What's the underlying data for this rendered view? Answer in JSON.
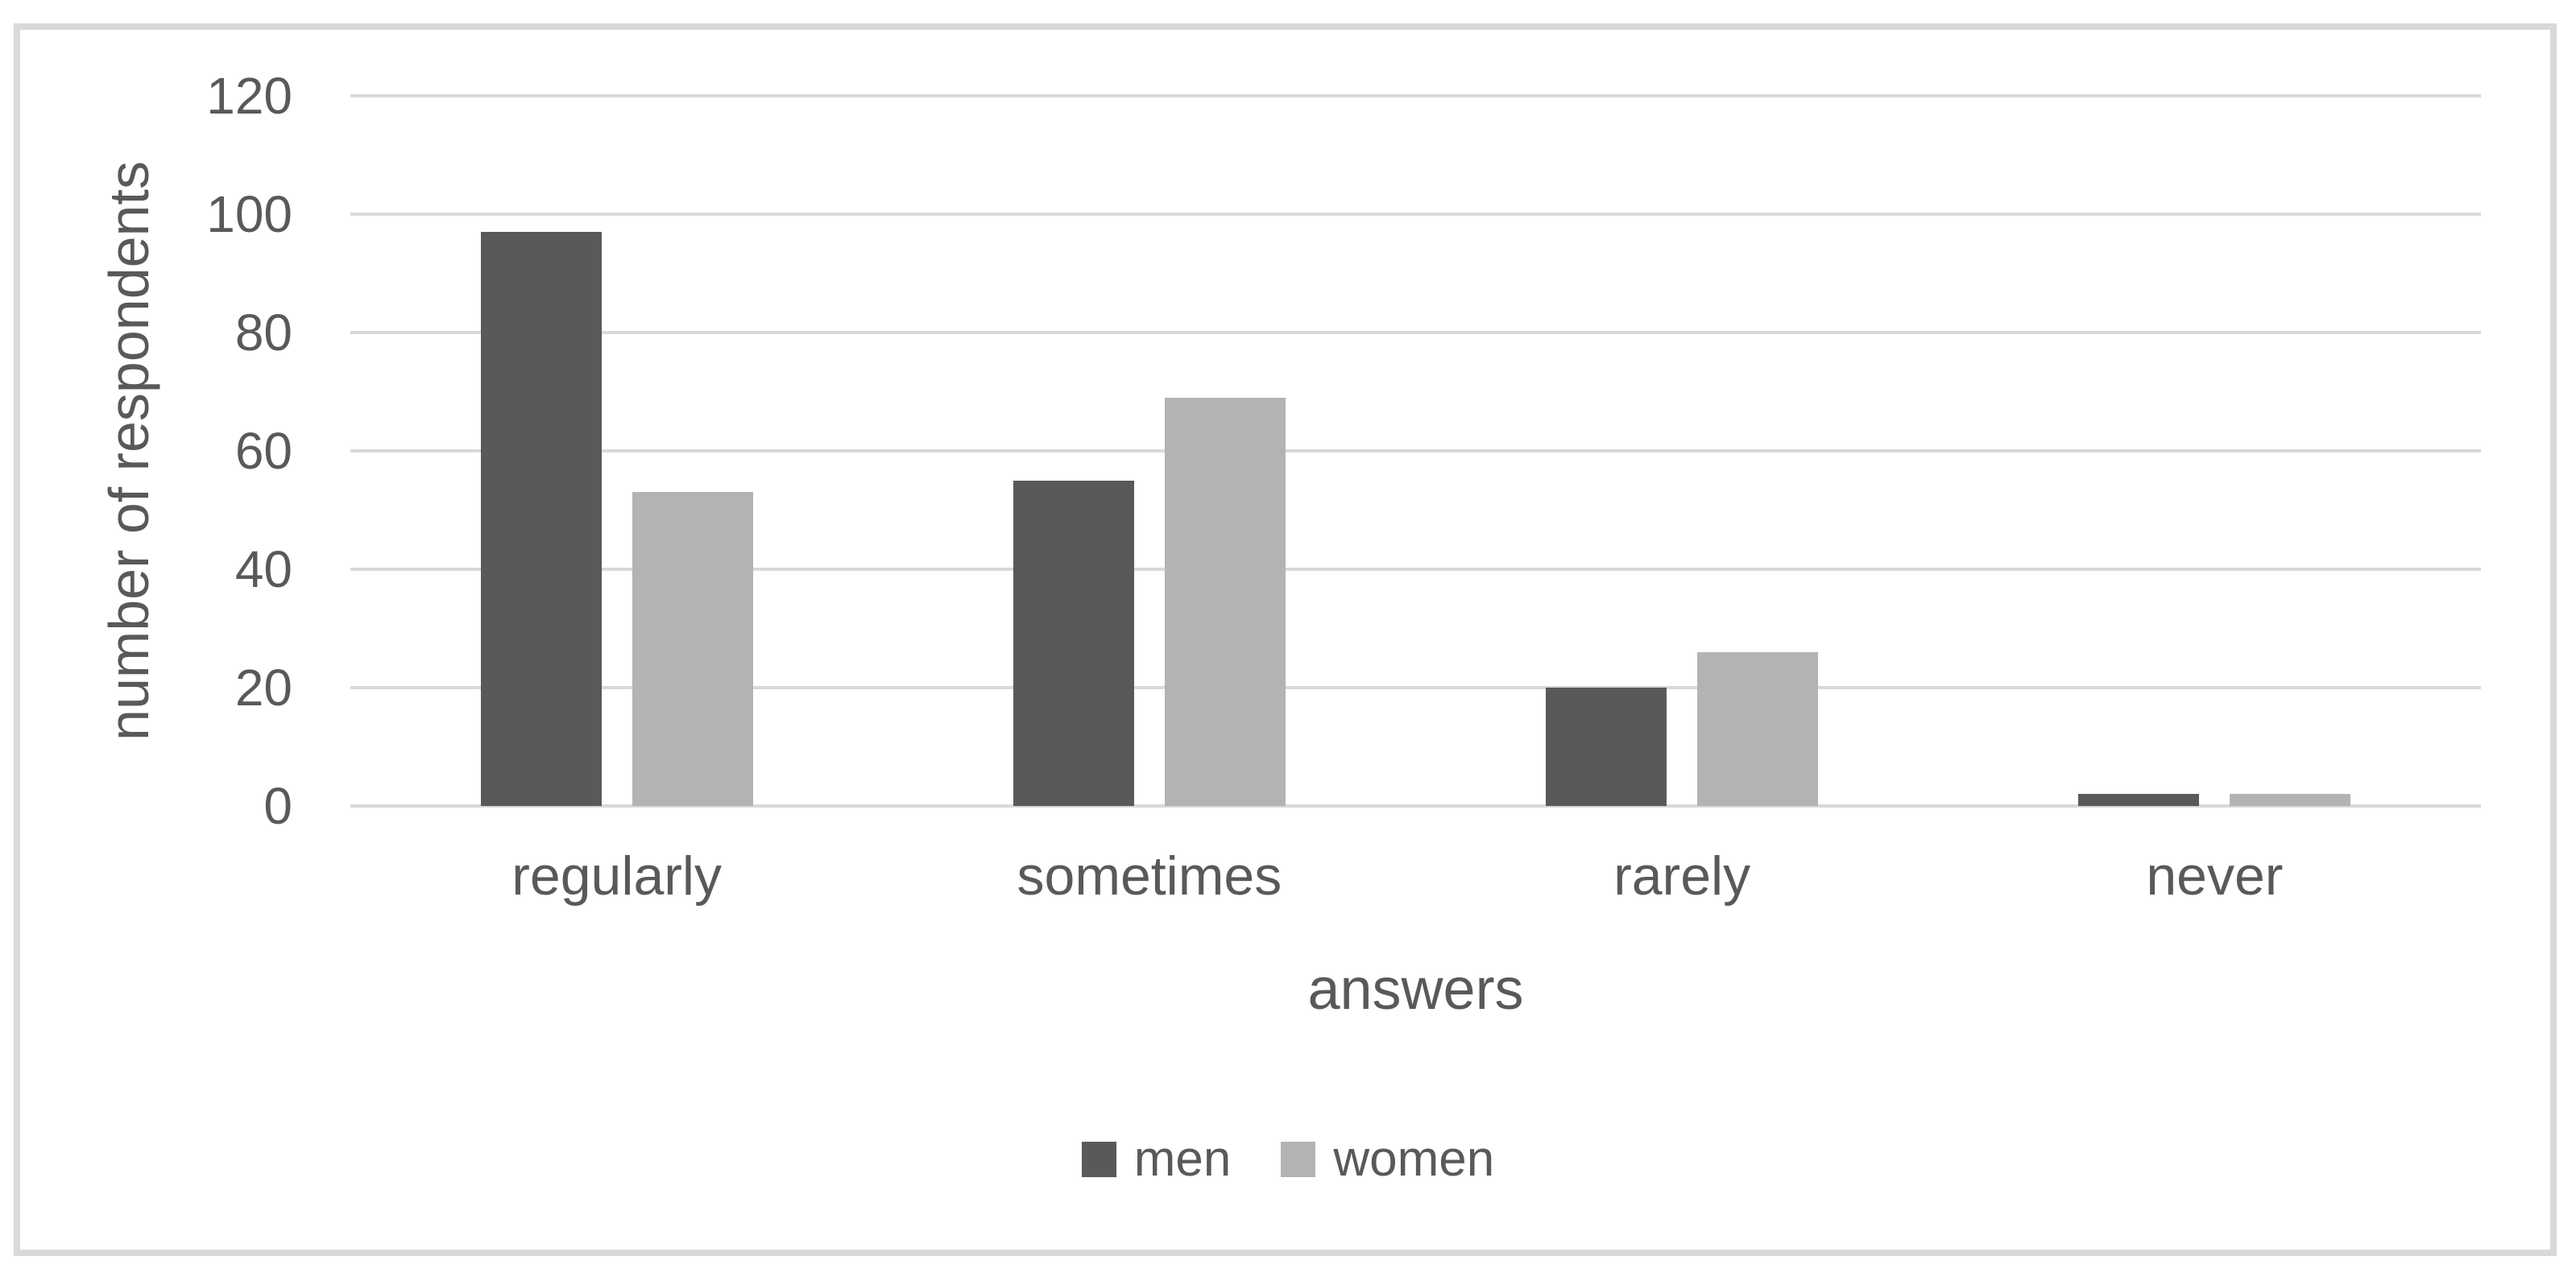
{
  "chart_data": {
    "type": "bar",
    "title": "",
    "categories": [
      "regularly",
      "sometimes",
      "rarely",
      "never"
    ],
    "series": [
      {
        "name": "men",
        "color": "#595959",
        "values": [
          97,
          55,
          20,
          2
        ]
      },
      {
        "name": "women",
        "color": "#b3b3b3",
        "values": [
          53,
          69,
          26,
          2
        ]
      }
    ],
    "xlabel": "answers",
    "ylabel": "number of respondents",
    "ylim": [
      0,
      120
    ],
    "ytick_interval": 20,
    "ytick_labels": [
      "120",
      "100",
      "80",
      "60",
      "40",
      "20",
      "0"
    ],
    "grid": "horizontal-only",
    "gridline_color": "#d9d9d9",
    "frame_color": "#d9d9d9",
    "text_color": "#595959",
    "background_color": "#ffffff",
    "legend_position": "bottom-center",
    "legend_entries": [
      "men",
      "women"
    ]
  }
}
